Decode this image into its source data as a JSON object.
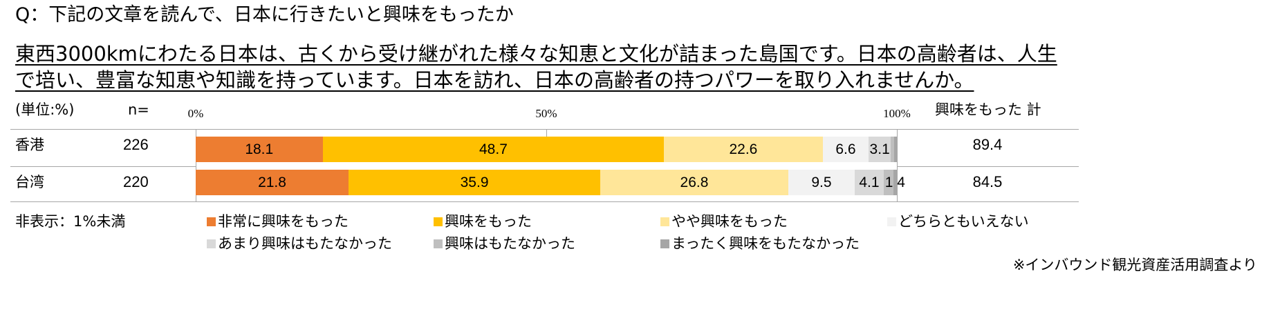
{
  "question": "Q：下記の文章を読んで、日本に行きたいと興味をもったか",
  "passage_lines": [
    "東西3000kmにわたる日本は、古くから受け継がれた様々な知恵と文化が詰まった島国です。日本の高齢者は、人生",
    "で培い、豊富な知恵や知識を持っています。日本を訪れ、日本の高齢者の持つパワーを取り入れませんか。"
  ],
  "chart_data": {
    "type": "bar",
    "orientation": "horizontal",
    "stacked": true,
    "unit_label": "(単位:%)",
    "n_label": "n=",
    "categories": [
      "香港",
      "台湾"
    ],
    "n": [
      226,
      220
    ],
    "x_ticks": [
      {
        "value": 0,
        "label": "0%"
      },
      {
        "value": 50,
        "label": "50%"
      },
      {
        "value": 100,
        "label": "100%"
      }
    ],
    "xlim": [
      0,
      100
    ],
    "grid": false,
    "legend": "bottom",
    "series": [
      {
        "name": "非常に興味をもった",
        "color": "#ED7D31",
        "values": [
          18.1,
          21.8
        ]
      },
      {
        "name": "興味をもった",
        "color": "#FFC000",
        "values": [
          48.7,
          35.9
        ]
      },
      {
        "name": "やや興味をもった",
        "color": "#FFE699",
        "values": [
          22.6,
          26.8
        ]
      },
      {
        "name": "どちらともいえない",
        "color": "#F2F2F2",
        "values": [
          6.6,
          9.5
        ]
      },
      {
        "name": "あまり興味はもたなかった",
        "color": "#D9D9D9",
        "values": [
          3.1,
          4.1
        ]
      },
      {
        "name": "興味はもたなかった",
        "color": "#BFBFBF",
        "values": [
          0.5,
          1.4
        ]
      },
      {
        "name": "まったく興味をもたなかった",
        "color": "#A6A6A6",
        "values": [
          0.4,
          0.5
        ]
      }
    ],
    "totals": {
      "label": "興味をもった 計",
      "values": [
        89.4,
        84.5
      ]
    },
    "note": "非表示：1%未満"
  },
  "footnote": "※インバウンド観光資産活用調査より"
}
